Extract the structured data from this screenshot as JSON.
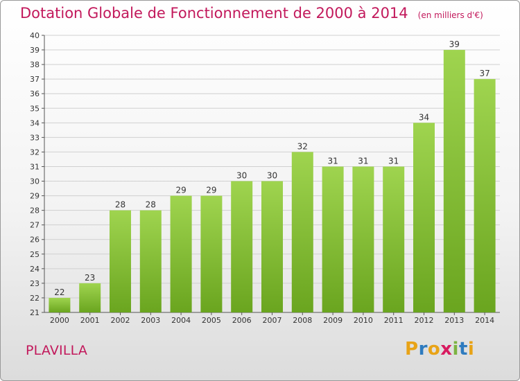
{
  "header": {
    "title": "Dotation Globale de Fonctionnement de 2000 à 2014",
    "unit": "(en milliers d'€)"
  },
  "commune": "PLAVILLA",
  "logo": {
    "text": "Proxiti",
    "letter_colors": [
      "#e8a317",
      "#2e7bbf",
      "#e8a317",
      "#d81b60",
      "#7cb342",
      "#2e7bbf",
      "#e8a317"
    ]
  },
  "colors": {
    "bar_light": "#9fd44f",
    "bar_dark": "#6aa51f",
    "title": "#c2185b",
    "grid": "#d0d0d0"
  },
  "chart_data": {
    "type": "bar",
    "categories": [
      "2000",
      "2001",
      "2002",
      "2003",
      "2004",
      "2005",
      "2006",
      "2007",
      "2008",
      "2009",
      "2010",
      "2011",
      "2012",
      "2013",
      "2014"
    ],
    "values": [
      22,
      23,
      28,
      28,
      29,
      29,
      30,
      30,
      32,
      31,
      31,
      31,
      34,
      39,
      37
    ],
    "title": "Dotation Globale de Fonctionnement de 2000 à 2014",
    "subtitle": "(en milliers d'€)",
    "xlabel": "",
    "ylabel": "",
    "ylim": [
      21,
      40
    ],
    "ytick_step": 1,
    "grid": true,
    "legend": "none"
  }
}
